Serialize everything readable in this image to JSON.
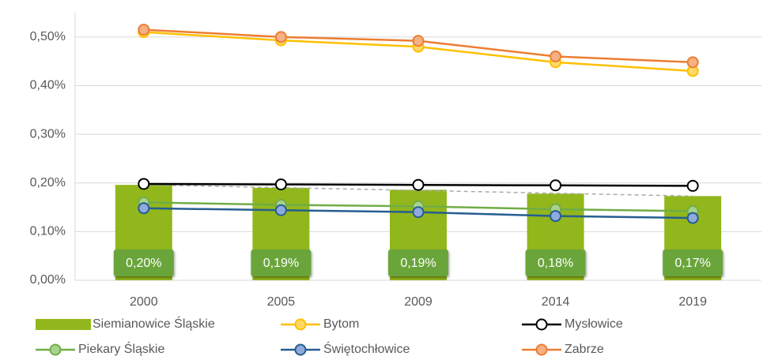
{
  "chart_data": {
    "type": "combo",
    "categories": [
      "2000",
      "2005",
      "2009",
      "2014",
      "2019"
    ],
    "ylim": [
      0,
      0.55
    ],
    "yticks": [
      {
        "value": 0,
        "label": "0,00%"
      },
      {
        "value": 0.1,
        "label": "0,10%"
      },
      {
        "value": 0.2,
        "label": "0,20%"
      },
      {
        "value": 0.3,
        "label": "0,30%"
      },
      {
        "value": 0.4,
        "label": "0,40%"
      },
      {
        "value": 0.5,
        "label": "0,50%"
      }
    ],
    "grid": true,
    "legend": "bottom",
    "series": [
      {
        "name": "Siemianowice Śląskie",
        "type": "bar",
        "color": "#92b71c",
        "label_color": "#6aa53a",
        "trendline": true,
        "trend_color": "#aaaaaa",
        "values": [
          0.196,
          0.19,
          0.186,
          0.178,
          0.173
        ],
        "value_labels": [
          "0,20%",
          "0,19%",
          "0,19%",
          "0,18%",
          "0,17%"
        ]
      },
      {
        "name": "Bytom",
        "type": "line",
        "color": "#ffc000",
        "marker_fill": "#ffd966",
        "values": [
          0.51,
          0.493,
          0.48,
          0.448,
          0.43
        ]
      },
      {
        "name": "Mysłowice",
        "type": "line",
        "color": "#000000",
        "marker_fill": "#ffffff",
        "values": [
          0.198,
          0.197,
          0.196,
          0.195,
          0.194
        ]
      },
      {
        "name": "Piekary Śląskie",
        "type": "line",
        "color": "#70ad47",
        "marker_fill": "#a9d18e",
        "values": [
          0.16,
          0.155,
          0.152,
          0.146,
          0.142
        ]
      },
      {
        "name": "Świętochłowice",
        "type": "line",
        "color": "#255e91",
        "marker_fill": "#8faadc",
        "values": [
          0.148,
          0.144,
          0.14,
          0.132,
          0.128
        ]
      },
      {
        "name": "Zabrze",
        "type": "line",
        "color": "#ed7d31",
        "marker_fill": "#f4b183",
        "values": [
          0.515,
          0.5,
          0.492,
          0.46,
          0.448
        ]
      }
    ]
  }
}
